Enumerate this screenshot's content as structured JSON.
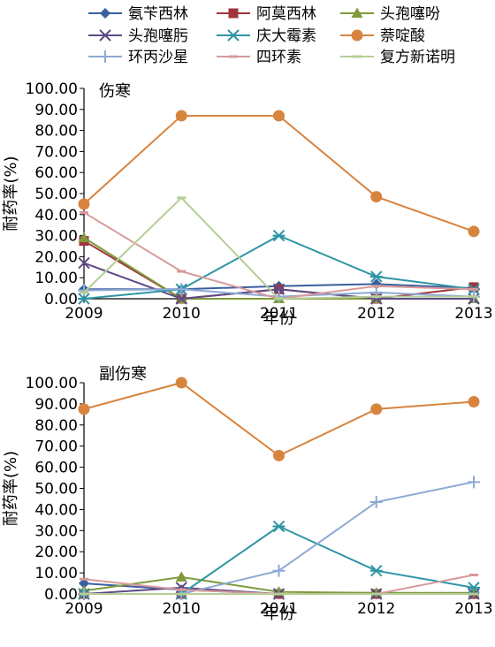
{
  "legend": [
    {
      "name": "氨苄西林",
      "color": "#3A5F9E",
      "marker": "diamond"
    },
    {
      "name": "阿莫西林",
      "color": "#A0353A",
      "marker": "square"
    },
    {
      "name": "头孢噻吩",
      "color": "#7E9A3C",
      "marker": "triangle"
    },
    {
      "name": "头孢噻肟",
      "color": "#5E4A86",
      "marker": "x"
    },
    {
      "name": "庆大霉素",
      "color": "#2E95A5",
      "marker": "star"
    },
    {
      "name": "萘啶酸",
      "color": "#D7843F",
      "marker": "circle"
    },
    {
      "name": "环丙沙星",
      "color": "#8EA9D4",
      "marker": "plus"
    },
    {
      "name": "四环素",
      "color": "#D9999A",
      "marker": "dash"
    },
    {
      "name": "复方新诺明",
      "color": "#B5CE97",
      "marker": "dash"
    }
  ],
  "chart_data": [
    {
      "type": "line",
      "title": "伤寒",
      "xlabel": "年份",
      "ylabel": "耐药率(%)",
      "x": [
        "2009",
        "2010",
        "2011",
        "2012",
        "2013"
      ],
      "ylim": [
        0,
        100
      ],
      "yticks": [
        "0.00",
        "10.00",
        "20.00",
        "30.00",
        "40.00",
        "50.00",
        "60.00",
        "70.00",
        "80.00",
        "90.00",
        "100.00"
      ],
      "series": [
        {
          "name": "氨苄西林",
          "values": [
            4.5,
            4.5,
            6,
            7,
            5
          ]
        },
        {
          "name": "阿莫西林",
          "values": [
            27.5,
            0,
            4.5,
            0,
            5.5
          ]
        },
        {
          "name": "头孢噻吩",
          "values": [
            29,
            0,
            0,
            0,
            0
          ]
        },
        {
          "name": "头孢噻肟",
          "values": [
            17,
            0,
            4.5,
            0,
            0
          ]
        },
        {
          "name": "庆大霉素",
          "values": [
            0,
            4.5,
            30,
            10.5,
            4.5
          ]
        },
        {
          "name": "萘啶酸",
          "values": [
            45,
            87,
            87,
            48.5,
            32
          ]
        },
        {
          "name": "环丙沙星",
          "values": [
            4,
            4.5,
            1,
            3,
            1
          ]
        },
        {
          "name": "四环素",
          "values": [
            41,
            13,
            0,
            6,
            4.5
          ]
        },
        {
          "name": "复方新诺明",
          "values": [
            3,
            48,
            0,
            1,
            1
          ]
        }
      ]
    },
    {
      "type": "line",
      "title": "副伤寒",
      "xlabel": "年份",
      "ylabel": "耐药率(%)",
      "x": [
        "2009",
        "2010",
        "2011",
        "2012",
        "2013"
      ],
      "ylim": [
        0,
        100
      ],
      "yticks": [
        "0.00",
        "10.00",
        "20.00",
        "30.00",
        "40.00",
        "50.00",
        "60.00",
        "70.00",
        "80.00",
        "90.00",
        "100.00"
      ],
      "series": [
        {
          "name": "氨苄西林",
          "values": [
            5,
            2,
            0,
            0,
            0
          ]
        },
        {
          "name": "阿莫西林",
          "values": [
            0,
            0,
            0,
            0,
            0
          ]
        },
        {
          "name": "头孢噻吩",
          "values": [
            1.5,
            8,
            1,
            0.5,
            0.5
          ]
        },
        {
          "name": "头孢噻肟",
          "values": [
            0,
            3,
            0,
            0,
            0
          ]
        },
        {
          "name": "庆大霉素",
          "values": [
            0,
            0,
            32,
            11,
            3
          ]
        },
        {
          "name": "萘啶酸",
          "values": [
            87.5,
            100,
            65.5,
            87.5,
            91
          ]
        },
        {
          "name": "环丙沙星",
          "values": [
            0,
            0,
            11,
            43.5,
            53
          ]
        },
        {
          "name": "四环素",
          "values": [
            7,
            2,
            0,
            0,
            9
          ]
        },
        {
          "name": "复方新诺明",
          "values": [
            0,
            0,
            0,
            0,
            0
          ]
        }
      ]
    }
  ]
}
